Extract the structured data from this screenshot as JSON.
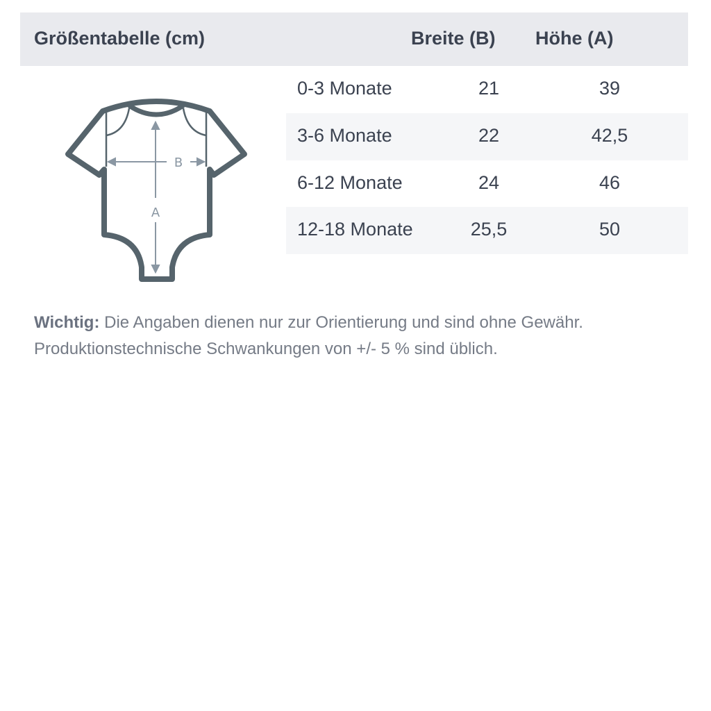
{
  "header": {
    "title": "Größentabelle (cm)",
    "col_width": "Breite (B)",
    "col_height": "Höhe (A)"
  },
  "rows": [
    {
      "size": "0-3 Monate",
      "width": "21",
      "height": "39"
    },
    {
      "size": "3-6 Monate",
      "width": "22",
      "height": "42,5"
    },
    {
      "size": "6-12 Monate",
      "width": "24",
      "height": "46"
    },
    {
      "size": "12-18 Monate",
      "width": "25,5",
      "height": "50"
    }
  ],
  "diagram": {
    "label_width": "B",
    "label_height": "A",
    "icon": "baby-bodysuit-icon"
  },
  "note": {
    "label": "Wichtig:",
    "line1": " Die Angaben dienen nur zur Orientierung und sind ohne Gewähr.",
    "line2": "Produktionstechnische Schwankungen von +/- 5 % sind üblich."
  },
  "colors": {
    "header_bg": "#e9eaee",
    "text": "#3b4250",
    "icon": "#56646c",
    "arrows": "#8a97a3"
  }
}
